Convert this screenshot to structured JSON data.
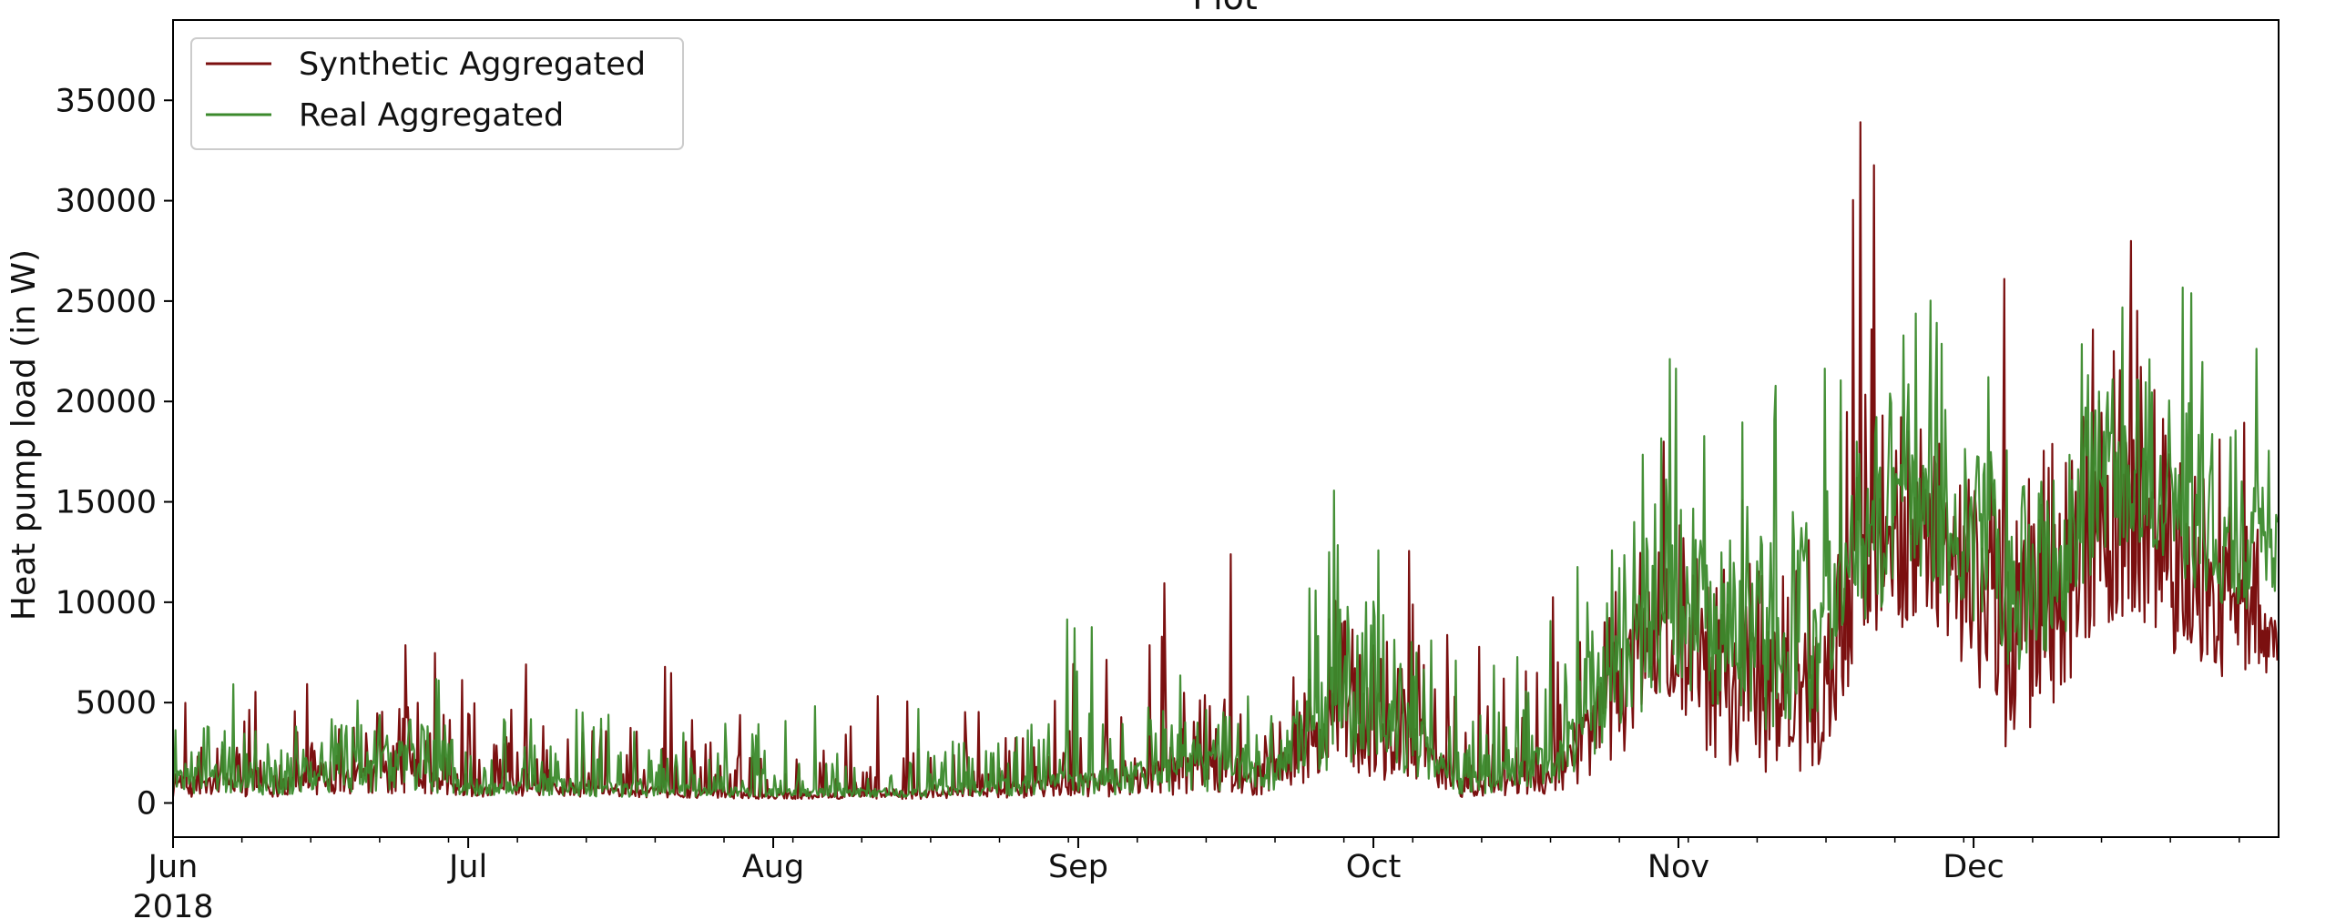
{
  "chart_data": {
    "type": "line",
    "title": "Plot",
    "xlabel": "",
    "ylabel": "Heat pump load (in W)",
    "x_range": [
      "2018-06-01",
      "2018-12-31"
    ],
    "ylim": [
      -1700,
      39000
    ],
    "y_ticks": [
      0,
      5000,
      10000,
      15000,
      20000,
      25000,
      30000,
      35000
    ],
    "x_ticks": [
      {
        "date": "2018-06-01",
        "label": "Jun",
        "sublabel": "2018"
      },
      {
        "date": "2018-07-01",
        "label": "Jul",
        "sublabel": ""
      },
      {
        "date": "2018-08-01",
        "label": "Aug",
        "sublabel": ""
      },
      {
        "date": "2018-09-01",
        "label": "Sep",
        "sublabel": ""
      },
      {
        "date": "2018-10-01",
        "label": "Oct",
        "sublabel": ""
      },
      {
        "date": "2018-11-01",
        "label": "Nov",
        "sublabel": ""
      },
      {
        "date": "2018-12-01",
        "label": "Dec",
        "sublabel": ""
      }
    ],
    "grid": false,
    "legend": "upper left",
    "series": [
      {
        "name": "Synthetic Aggregated",
        "color": "#7b1010",
        "envelope": {
          "x": [
            "2018-06-01",
            "2018-06-10",
            "2018-06-20",
            "2018-06-25",
            "2018-07-01",
            "2018-07-10",
            "2018-07-15",
            "2018-08-01",
            "2018-08-15",
            "2018-09-01",
            "2018-09-15",
            "2018-09-20",
            "2018-09-27",
            "2018-10-01",
            "2018-10-05",
            "2018-10-10",
            "2018-10-20",
            "2018-10-25",
            "2018-11-01",
            "2018-11-05",
            "2018-11-10",
            "2018-11-15",
            "2018-11-20",
            "2018-11-25",
            "2018-12-01",
            "2018-12-05",
            "2018-12-10",
            "2018-12-15",
            "2018-12-20",
            "2018-12-25",
            "2018-12-31"
          ],
          "peak": [
            5500,
            6000,
            7000,
            11500,
            6000,
            8000,
            7800,
            5000,
            5500,
            7000,
            13500,
            10000,
            16000,
            12000,
            13000,
            11000,
            14000,
            16500,
            19000,
            16000,
            19000,
            21000,
            37000,
            24000,
            20000,
            29000,
            24000,
            30500,
            28000,
            20000,
            19000
          ],
          "typical": [
            1200,
            1300,
            1800,
            2500,
            700,
            1000,
            900,
            500,
            600,
            1200,
            2500,
            1800,
            5500,
            5000,
            4500,
            900,
            2000,
            7000,
            10000,
            9000,
            8000,
            7500,
            14000,
            16000,
            13000,
            11000,
            14000,
            17000,
            16000,
            12000,
            10000
          ],
          "floor": [
            300,
            300,
            400,
            500,
            300,
            300,
            300,
            200,
            200,
            300,
            400,
            400,
            1000,
            1200,
            800,
            300,
            400,
            2000,
            4000,
            2000,
            1500,
            1500,
            8000,
            9000,
            6000,
            2000,
            5000,
            9000,
            8000,
            6000,
            6500
          ]
        }
      },
      {
        "name": "Real Aggregated",
        "color": "#3b8a2c",
        "envelope": {
          "x": [
            "2018-06-01",
            "2018-06-10",
            "2018-06-20",
            "2018-06-25",
            "2018-07-01",
            "2018-07-10",
            "2018-07-15",
            "2018-08-01",
            "2018-08-15",
            "2018-09-01",
            "2018-09-15",
            "2018-09-20",
            "2018-09-27",
            "2018-10-01",
            "2018-10-05",
            "2018-10-10",
            "2018-10-20",
            "2018-10-25",
            "2018-11-01",
            "2018-11-05",
            "2018-11-10",
            "2018-11-15",
            "2018-11-20",
            "2018-11-25",
            "2018-12-01",
            "2018-12-05",
            "2018-12-10",
            "2018-12-15",
            "2018-12-20",
            "2018-12-25",
            "2018-12-31"
          ],
          "peak": [
            7500,
            7000,
            6500,
            9000,
            5000,
            5500,
            5000,
            5000,
            4500,
            9500,
            7500,
            6000,
            16000,
            15000,
            12000,
            7000,
            12000,
            17500,
            23000,
            20000,
            21000,
            21000,
            25500,
            27000,
            22000,
            24000,
            21000,
            27000,
            28500,
            25000,
            22000
          ],
          "typical": [
            1800,
            2000,
            2400,
            3000,
            900,
            1200,
            1000,
            700,
            700,
            1500,
            2500,
            2000,
            6500,
            6500,
            5000,
            1200,
            3000,
            8500,
            12000,
            11000,
            10000,
            9500,
            15000,
            17000,
            14500,
            13000,
            15000,
            18500,
            17500,
            15000,
            14000
          ],
          "floor": [
            400,
            400,
            500,
            600,
            300,
            300,
            300,
            300,
            300,
            400,
            500,
            500,
            1500,
            2000,
            1200,
            400,
            700,
            3000,
            6000,
            4000,
            3500,
            4000,
            9000,
            11000,
            9000,
            6000,
            8000,
            13000,
            12000,
            10000,
            9500
          ]
        }
      }
    ]
  }
}
